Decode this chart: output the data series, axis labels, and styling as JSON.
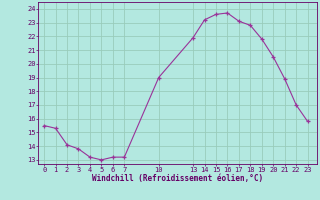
{
  "x": [
    0,
    1,
    2,
    3,
    4,
    5,
    6,
    7,
    10,
    13,
    14,
    15,
    16,
    17,
    18,
    19,
    20,
    21,
    22,
    23
  ],
  "y": [
    15.5,
    15.3,
    14.1,
    13.8,
    13.2,
    13.0,
    13.2,
    13.2,
    19.0,
    21.9,
    23.2,
    23.6,
    23.7,
    23.1,
    22.8,
    21.8,
    20.5,
    18.9,
    17.0,
    15.8
  ],
  "line_color": "#993399",
  "marker": "+",
  "bg_color": "#b3e8e0",
  "grid_color": "#99ccbb",
  "tick_color": "#660066",
  "label_color": "#660066",
  "xlabel": "Windchill (Refroidissement éolien,°C)",
  "xticks": [
    0,
    1,
    2,
    3,
    4,
    5,
    6,
    7,
    10,
    13,
    14,
    15,
    16,
    17,
    18,
    19,
    20,
    21,
    22,
    23
  ],
  "yticks": [
    13,
    14,
    15,
    16,
    17,
    18,
    19,
    20,
    21,
    22,
    23,
    24
  ],
  "ylim": [
    12.7,
    24.5
  ],
  "xlim": [
    -0.5,
    23.8
  ]
}
